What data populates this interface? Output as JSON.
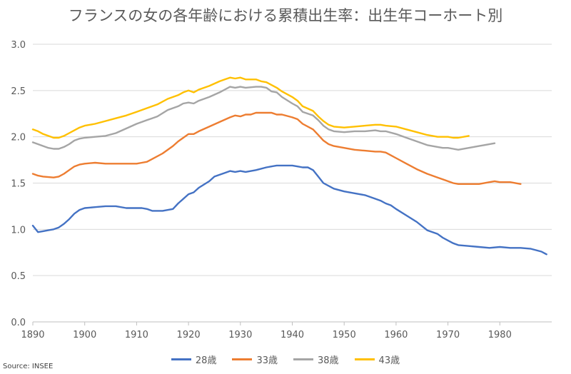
{
  "source": "Source: INSEE",
  "chart_data": {
    "type": "line",
    "title": "フランスの女の各年齢における累積出生率：出生年コーホート別",
    "xlabel": "",
    "ylabel": "",
    "xlim": [
      1890,
      1990
    ],
    "ylim": [
      0,
      3
    ],
    "x_ticks": [
      1890,
      1900,
      1910,
      1920,
      1930,
      1940,
      1950,
      1960,
      1970,
      1980
    ],
    "y_ticks": [
      "0.0",
      "0.5",
      "1.0",
      "1.5",
      "2.0",
      "2.5",
      "3.0"
    ],
    "grid": true,
    "legend_position": "bottom",
    "series": [
      {
        "name": "28歳",
        "color": "#4472C4",
        "points": [
          [
            1890,
            1.04
          ],
          [
            1891,
            0.97
          ],
          [
            1892,
            0.98
          ],
          [
            1893,
            0.99
          ],
          [
            1894,
            1.0
          ],
          [
            1895,
            1.02
          ],
          [
            1896,
            1.06
          ],
          [
            1897,
            1.11
          ],
          [
            1898,
            1.17
          ],
          [
            1899,
            1.21
          ],
          [
            1900,
            1.23
          ],
          [
            1902,
            1.24
          ],
          [
            1904,
            1.25
          ],
          [
            1906,
            1.25
          ],
          [
            1908,
            1.23
          ],
          [
            1910,
            1.23
          ],
          [
            1911,
            1.23
          ],
          [
            1912,
            1.22
          ],
          [
            1913,
            1.2
          ],
          [
            1915,
            1.2
          ],
          [
            1917,
            1.22
          ],
          [
            1918,
            1.28
          ],
          [
            1920,
            1.38
          ],
          [
            1921,
            1.4
          ],
          [
            1922,
            1.45
          ],
          [
            1924,
            1.52
          ],
          [
            1925,
            1.57
          ],
          [
            1927,
            1.61
          ],
          [
            1928,
            1.63
          ],
          [
            1929,
            1.62
          ],
          [
            1930,
            1.63
          ],
          [
            1931,
            1.62
          ],
          [
            1933,
            1.64
          ],
          [
            1935,
            1.67
          ],
          [
            1936,
            1.68
          ],
          [
            1937,
            1.69
          ],
          [
            1938,
            1.69
          ],
          [
            1940,
            1.69
          ],
          [
            1941,
            1.68
          ],
          [
            1942,
            1.67
          ],
          [
            1943,
            1.67
          ],
          [
            1944,
            1.64
          ],
          [
            1945,
            1.57
          ],
          [
            1946,
            1.5
          ],
          [
            1948,
            1.44
          ],
          [
            1950,
            1.41
          ],
          [
            1952,
            1.39
          ],
          [
            1954,
            1.37
          ],
          [
            1956,
            1.33
          ],
          [
            1957,
            1.31
          ],
          [
            1958,
            1.28
          ],
          [
            1959,
            1.26
          ],
          [
            1960,
            1.22
          ],
          [
            1962,
            1.15
          ],
          [
            1964,
            1.08
          ],
          [
            1966,
            0.99
          ],
          [
            1968,
            0.95
          ],
          [
            1969,
            0.91
          ],
          [
            1970,
            0.88
          ],
          [
            1971,
            0.85
          ],
          [
            1972,
            0.83
          ],
          [
            1974,
            0.82
          ],
          [
            1976,
            0.81
          ],
          [
            1978,
            0.8
          ],
          [
            1980,
            0.81
          ],
          [
            1982,
            0.8
          ],
          [
            1984,
            0.8
          ],
          [
            1986,
            0.79
          ],
          [
            1988,
            0.76
          ],
          [
            1989,
            0.73
          ]
        ]
      },
      {
        "name": "33歳",
        "color": "#ED7D31",
        "points": [
          [
            1890,
            1.6
          ],
          [
            1891,
            1.58
          ],
          [
            1892,
            1.57
          ],
          [
            1894,
            1.56
          ],
          [
            1895,
            1.57
          ],
          [
            1896,
            1.6
          ],
          [
            1897,
            1.64
          ],
          [
            1898,
            1.68
          ],
          [
            1899,
            1.7
          ],
          [
            1900,
            1.71
          ],
          [
            1902,
            1.72
          ],
          [
            1904,
            1.71
          ],
          [
            1906,
            1.71
          ],
          [
            1908,
            1.71
          ],
          [
            1910,
            1.71
          ],
          [
            1911,
            1.72
          ],
          [
            1912,
            1.73
          ],
          [
            1913,
            1.76
          ],
          [
            1915,
            1.82
          ],
          [
            1917,
            1.9
          ],
          [
            1918,
            1.95
          ],
          [
            1919,
            1.99
          ],
          [
            1920,
            2.03
          ],
          [
            1921,
            2.03
          ],
          [
            1922,
            2.06
          ],
          [
            1924,
            2.11
          ],
          [
            1926,
            2.16
          ],
          [
            1928,
            2.21
          ],
          [
            1929,
            2.23
          ],
          [
            1930,
            2.22
          ],
          [
            1931,
            2.24
          ],
          [
            1932,
            2.24
          ],
          [
            1933,
            2.26
          ],
          [
            1935,
            2.26
          ],
          [
            1936,
            2.26
          ],
          [
            1937,
            2.24
          ],
          [
            1938,
            2.24
          ],
          [
            1940,
            2.21
          ],
          [
            1941,
            2.19
          ],
          [
            1942,
            2.14
          ],
          [
            1944,
            2.08
          ],
          [
            1945,
            2.02
          ],
          [
            1946,
            1.96
          ],
          [
            1947,
            1.92
          ],
          [
            1948,
            1.9
          ],
          [
            1950,
            1.88
          ],
          [
            1952,
            1.86
          ],
          [
            1954,
            1.85
          ],
          [
            1956,
            1.84
          ],
          [
            1957,
            1.84
          ],
          [
            1958,
            1.83
          ],
          [
            1959,
            1.8
          ],
          [
            1960,
            1.77
          ],
          [
            1962,
            1.71
          ],
          [
            1964,
            1.65
          ],
          [
            1966,
            1.6
          ],
          [
            1968,
            1.56
          ],
          [
            1969,
            1.54
          ],
          [
            1970,
            1.52
          ],
          [
            1971,
            1.5
          ],
          [
            1972,
            1.49
          ],
          [
            1974,
            1.49
          ],
          [
            1976,
            1.49
          ],
          [
            1978,
            1.51
          ],
          [
            1979,
            1.52
          ],
          [
            1980,
            1.51
          ],
          [
            1982,
            1.51
          ],
          [
            1984,
            1.49
          ]
        ]
      },
      {
        "name": "38歳",
        "color": "#A5A5A5",
        "points": [
          [
            1890,
            1.94
          ],
          [
            1891,
            1.92
          ],
          [
            1892,
            1.9
          ],
          [
            1893,
            1.88
          ],
          [
            1894,
            1.87
          ],
          [
            1895,
            1.87
          ],
          [
            1896,
            1.89
          ],
          [
            1897,
            1.92
          ],
          [
            1898,
            1.96
          ],
          [
            1899,
            1.98
          ],
          [
            1900,
            1.99
          ],
          [
            1902,
            2.0
          ],
          [
            1904,
            2.01
          ],
          [
            1906,
            2.04
          ],
          [
            1908,
            2.09
          ],
          [
            1910,
            2.14
          ],
          [
            1912,
            2.18
          ],
          [
            1913,
            2.2
          ],
          [
            1914,
            2.22
          ],
          [
            1916,
            2.29
          ],
          [
            1918,
            2.33
          ],
          [
            1919,
            2.36
          ],
          [
            1920,
            2.37
          ],
          [
            1921,
            2.36
          ],
          [
            1922,
            2.39
          ],
          [
            1924,
            2.43
          ],
          [
            1926,
            2.48
          ],
          [
            1927,
            2.51
          ],
          [
            1928,
            2.54
          ],
          [
            1929,
            2.53
          ],
          [
            1930,
            2.54
          ],
          [
            1931,
            2.53
          ],
          [
            1933,
            2.54
          ],
          [
            1934,
            2.54
          ],
          [
            1935,
            2.53
          ],
          [
            1936,
            2.49
          ],
          [
            1937,
            2.48
          ],
          [
            1938,
            2.43
          ],
          [
            1940,
            2.36
          ],
          [
            1941,
            2.33
          ],
          [
            1942,
            2.27
          ],
          [
            1944,
            2.23
          ],
          [
            1945,
            2.18
          ],
          [
            1946,
            2.12
          ],
          [
            1947,
            2.08
          ],
          [
            1948,
            2.06
          ],
          [
            1950,
            2.05
          ],
          [
            1952,
            2.06
          ],
          [
            1954,
            2.06
          ],
          [
            1956,
            2.07
          ],
          [
            1957,
            2.06
          ],
          [
            1958,
            2.06
          ],
          [
            1960,
            2.03
          ],
          [
            1962,
            1.99
          ],
          [
            1964,
            1.95
          ],
          [
            1966,
            1.91
          ],
          [
            1968,
            1.89
          ],
          [
            1969,
            1.88
          ],
          [
            1970,
            1.88
          ],
          [
            1971,
            1.87
          ],
          [
            1972,
            1.86
          ],
          [
            1974,
            1.88
          ],
          [
            1976,
            1.9
          ],
          [
            1977,
            1.91
          ],
          [
            1979,
            1.93
          ]
        ]
      },
      {
        "name": "43歳",
        "color": "#FFC000",
        "points": [
          [
            1890,
            2.08
          ],
          [
            1891,
            2.06
          ],
          [
            1892,
            2.03
          ],
          [
            1893,
            2.01
          ],
          [
            1894,
            1.99
          ],
          [
            1895,
            1.99
          ],
          [
            1896,
            2.01
          ],
          [
            1897,
            2.04
          ],
          [
            1898,
            2.07
          ],
          [
            1899,
            2.1
          ],
          [
            1900,
            2.12
          ],
          [
            1902,
            2.14
          ],
          [
            1904,
            2.17
          ],
          [
            1906,
            2.2
          ],
          [
            1908,
            2.23
          ],
          [
            1910,
            2.27
          ],
          [
            1912,
            2.31
          ],
          [
            1913,
            2.33
          ],
          [
            1914,
            2.35
          ],
          [
            1916,
            2.41
          ],
          [
            1918,
            2.45
          ],
          [
            1919,
            2.48
          ],
          [
            1920,
            2.5
          ],
          [
            1921,
            2.48
          ],
          [
            1922,
            2.51
          ],
          [
            1924,
            2.55
          ],
          [
            1926,
            2.6
          ],
          [
            1927,
            2.62
          ],
          [
            1928,
            2.64
          ],
          [
            1929,
            2.63
          ],
          [
            1930,
            2.64
          ],
          [
            1931,
            2.62
          ],
          [
            1933,
            2.62
          ],
          [
            1934,
            2.6
          ],
          [
            1935,
            2.59
          ],
          [
            1936,
            2.56
          ],
          [
            1937,
            2.53
          ],
          [
            1938,
            2.49
          ],
          [
            1940,
            2.43
          ],
          [
            1941,
            2.39
          ],
          [
            1942,
            2.33
          ],
          [
            1944,
            2.28
          ],
          [
            1945,
            2.22
          ],
          [
            1946,
            2.17
          ],
          [
            1947,
            2.13
          ],
          [
            1948,
            2.11
          ],
          [
            1950,
            2.1
          ],
          [
            1952,
            2.11
          ],
          [
            1954,
            2.12
          ],
          [
            1956,
            2.13
          ],
          [
            1957,
            2.13
          ],
          [
            1958,
            2.12
          ],
          [
            1960,
            2.11
          ],
          [
            1962,
            2.08
          ],
          [
            1964,
            2.05
          ],
          [
            1966,
            2.02
          ],
          [
            1968,
            2.0
          ],
          [
            1969,
            2.0
          ],
          [
            1970,
            2.0
          ],
          [
            1971,
            1.99
          ],
          [
            1972,
            1.99
          ],
          [
            1974,
            2.01
          ]
        ]
      }
    ]
  }
}
